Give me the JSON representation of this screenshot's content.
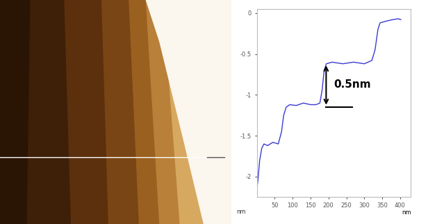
{
  "chart_data": {
    "type": "line",
    "x_label": "nm",
    "y_label": "nm",
    "x": [
      0,
      3,
      8,
      14,
      20,
      30,
      45,
      60,
      69,
      75,
      82,
      92,
      110,
      130,
      150,
      165,
      176,
      182,
      188,
      194,
      210,
      240,
      270,
      300,
      321,
      330,
      338,
      344,
      360,
      380,
      395,
      402
    ],
    "values": [
      -2.15,
      -2.05,
      -1.8,
      -1.65,
      -1.6,
      -1.62,
      -1.58,
      -1.6,
      -1.45,
      -1.25,
      -1.15,
      -1.12,
      -1.13,
      -1.1,
      -1.12,
      -1.12,
      -1.1,
      -0.95,
      -0.7,
      -0.62,
      -0.6,
      -0.62,
      -0.6,
      -0.62,
      -0.58,
      -0.45,
      -0.2,
      -0.12,
      -0.1,
      -0.08,
      -0.07,
      -0.08
    ],
    "color": "#3a3ad0",
    "xlim": [
      0,
      430
    ],
    "ylim": [
      -2.25,
      0.05
    ],
    "xticks": [
      50,
      100,
      150,
      200,
      250,
      300,
      350,
      400
    ],
    "yticks": [
      {
        "value": 0,
        "label": "0"
      },
      {
        "value": -0.5,
        "label": "-0.5"
      },
      {
        "value": -1,
        "label": "-1"
      },
      {
        "value": -1.5,
        "label": "-1.5"
      },
      {
        "value": -2,
        "label": "-2"
      }
    ],
    "annotations": [
      {
        "text": "0.5nm"
      }
    ]
  }
}
